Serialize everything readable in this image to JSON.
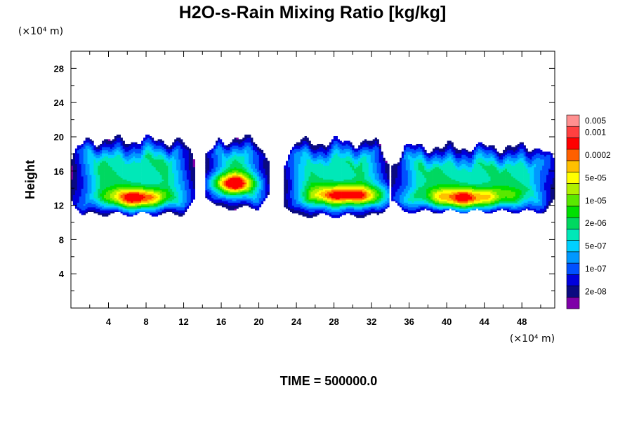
{
  "chart_data": {
    "type": "heatmap",
    "title": "H2O-s-Rain Mixing Ratio [kg/kg]",
    "ylabel": "Height",
    "x_unit": "(×10⁴ m)",
    "y_unit": "(×10⁴ m)",
    "xlim": [
      0,
      51.5
    ],
    "ylim": [
      0,
      30
    ],
    "x_ticks": [
      4,
      8,
      12,
      16,
      20,
      24,
      28,
      32,
      36,
      40,
      44,
      48
    ],
    "y_ticks": [
      4,
      8,
      12,
      16,
      20,
      24,
      28
    ],
    "footer": "TIME = 500000.0",
    "legend": {
      "placement": "right",
      "colors": [
        "#7f00a8",
        "#0a0a80",
        "#0000dc",
        "#0050ff",
        "#0098ff",
        "#00d0ff",
        "#00e8b8",
        "#00d860",
        "#00e000",
        "#5ae800",
        "#b0f000",
        "#ffff00",
        "#ffc000",
        "#ff6000",
        "#ff0000",
        "#ff4040",
        "#ff9090"
      ],
      "labels": [
        {
          "text": "2e-08",
          "band": 1
        },
        {
          "text": "1e-07",
          "band": 3
        },
        {
          "text": "5e-07",
          "band": 5
        },
        {
          "text": "2e-06",
          "band": 7
        },
        {
          "text": "1e-05",
          "band": 9
        },
        {
          "text": "5e-05",
          "band": 11
        },
        {
          "text": "0.0002",
          "band": 13
        },
        {
          "text": "0.001",
          "band": 15
        },
        {
          "text": "0.005",
          "band": 16
        }
      ]
    },
    "cloud_blobs": [
      {
        "x0": 0,
        "x1": 13,
        "ybot": 10.9,
        "ytop": 19.5,
        "core": [
          7,
          12.7
        ],
        "spread": 3.2
      },
      {
        "x0": 14.3,
        "x1": 21,
        "ybot": 11.6,
        "ytop": 19.6,
        "core": [
          17,
          14.5
        ],
        "spread": 2.4
      },
      {
        "x0": 22.5,
        "x1": 33.8,
        "ybot": 10.7,
        "ytop": 19.3,
        "core": [
          29.5,
          13.1
        ],
        "spread": 3.8
      },
      {
        "x0": 34,
        "x1": 51.5,
        "ybot": 11.2,
        "ytop": 18.7,
        "core": [
          42,
          12.7
        ],
        "spread": 4.5
      }
    ]
  }
}
